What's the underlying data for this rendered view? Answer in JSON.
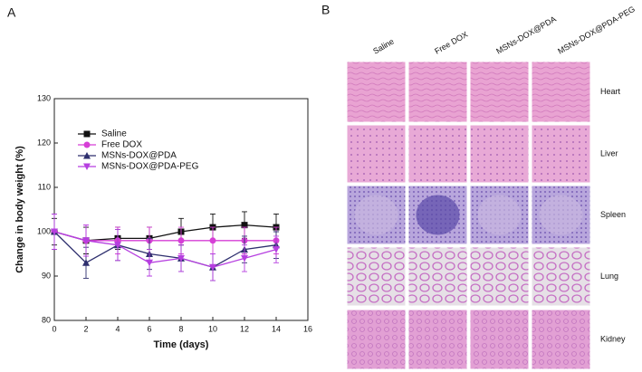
{
  "chart_data": {
    "type": "line",
    "panel_label": "A",
    "xlabel": "Time (days)",
    "ylabel": "Change in body weight (%)",
    "x": [
      0,
      2,
      4,
      6,
      8,
      10,
      12,
      14
    ],
    "series": [
      {
        "name": "Saline",
        "color": "#111111",
        "marker": "square",
        "values": [
          100,
          98,
          98.5,
          98.5,
          100,
          101,
          101.5,
          101
        ],
        "errors": [
          3,
          3,
          2.5,
          2.5,
          3,
          3,
          3,
          3
        ]
      },
      {
        "name": "Free DOX",
        "color": "#d63fd6",
        "marker": "circle",
        "values": [
          100,
          98,
          98,
          98,
          98,
          98,
          98,
          98
        ],
        "errors": [
          4,
          3.5,
          3,
          3,
          3,
          3,
          3,
          3
        ]
      },
      {
        "name": "MSNs-DOX@PDA",
        "color": "#2e2f6e",
        "marker": "triangle-up",
        "values": [
          100,
          93,
          97,
          95,
          94,
          92,
          96,
          97
        ],
        "errors": [
          4,
          3.5,
          3.5,
          3.5,
          3,
          3,
          3,
          3
        ]
      },
      {
        "name": "MSNs-DOX@PDA-PEG",
        "color": "#b63fe0",
        "marker": "triangle-down",
        "values": [
          100,
          98,
          97,
          93,
          94,
          92,
          94,
          96
        ],
        "errors": [
          4,
          3.5,
          3.5,
          3,
          3,
          3,
          3,
          3
        ]
      }
    ],
    "xlim": [
      0,
      16
    ],
    "xticks": [
      0,
      2,
      4,
      6,
      8,
      10,
      12,
      14,
      16
    ],
    "ylim": [
      80,
      130
    ],
    "yticks": [
      80,
      90,
      100,
      110,
      120,
      130
    ],
    "legend": "upper left"
  },
  "panel_b": {
    "label": "B",
    "columns": [
      "Saline",
      "Free DOX",
      "MSNs-DOX@PDA",
      "MSNs-DOX@PDA-PEG"
    ],
    "rows": [
      "Heart",
      "Liver",
      "Spleen",
      "Lung",
      "Kidney"
    ]
  }
}
